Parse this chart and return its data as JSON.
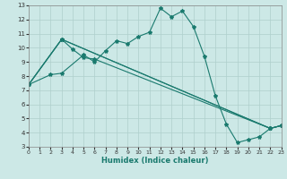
{
  "xlabel": "Humidex (Indice chaleur)",
  "xlim": [
    0,
    23
  ],
  "ylim": [
    3,
    13
  ],
  "xticks": [
    0,
    1,
    2,
    3,
    4,
    5,
    6,
    7,
    8,
    9,
    10,
    11,
    12,
    13,
    14,
    15,
    16,
    17,
    18,
    19,
    20,
    21,
    22,
    23
  ],
  "yticks": [
    3,
    4,
    5,
    6,
    7,
    8,
    9,
    10,
    11,
    12,
    13
  ],
  "bg_color": "#cce8e6",
  "line_color": "#1a7a6e",
  "grid_color": "#aecfcc",
  "line1_x": [
    0,
    2,
    3,
    5,
    6,
    7,
    8,
    9,
    10,
    11,
    12,
    13,
    14,
    15,
    16,
    17,
    18,
    19,
    20,
    21,
    22,
    23
  ],
  "line1_y": [
    7.4,
    8.1,
    8.2,
    9.5,
    9.0,
    9.8,
    10.5,
    10.3,
    10.8,
    11.1,
    12.8,
    12.2,
    12.6,
    11.5,
    9.4,
    6.6,
    4.6,
    3.3,
    3.5,
    3.7,
    4.3,
    4.5
  ],
  "line2_x": [
    0,
    3,
    22,
    23
  ],
  "line2_y": [
    7.4,
    10.6,
    4.3,
    4.5
  ],
  "line3_x": [
    0,
    3,
    22,
    23
  ],
  "line3_y": [
    7.4,
    10.6,
    4.3,
    4.5
  ],
  "line4_x": [
    0,
    3,
    4,
    5,
    6,
    22,
    23
  ],
  "line4_y": [
    7.4,
    10.6,
    9.9,
    9.3,
    9.2,
    4.3,
    4.5
  ]
}
